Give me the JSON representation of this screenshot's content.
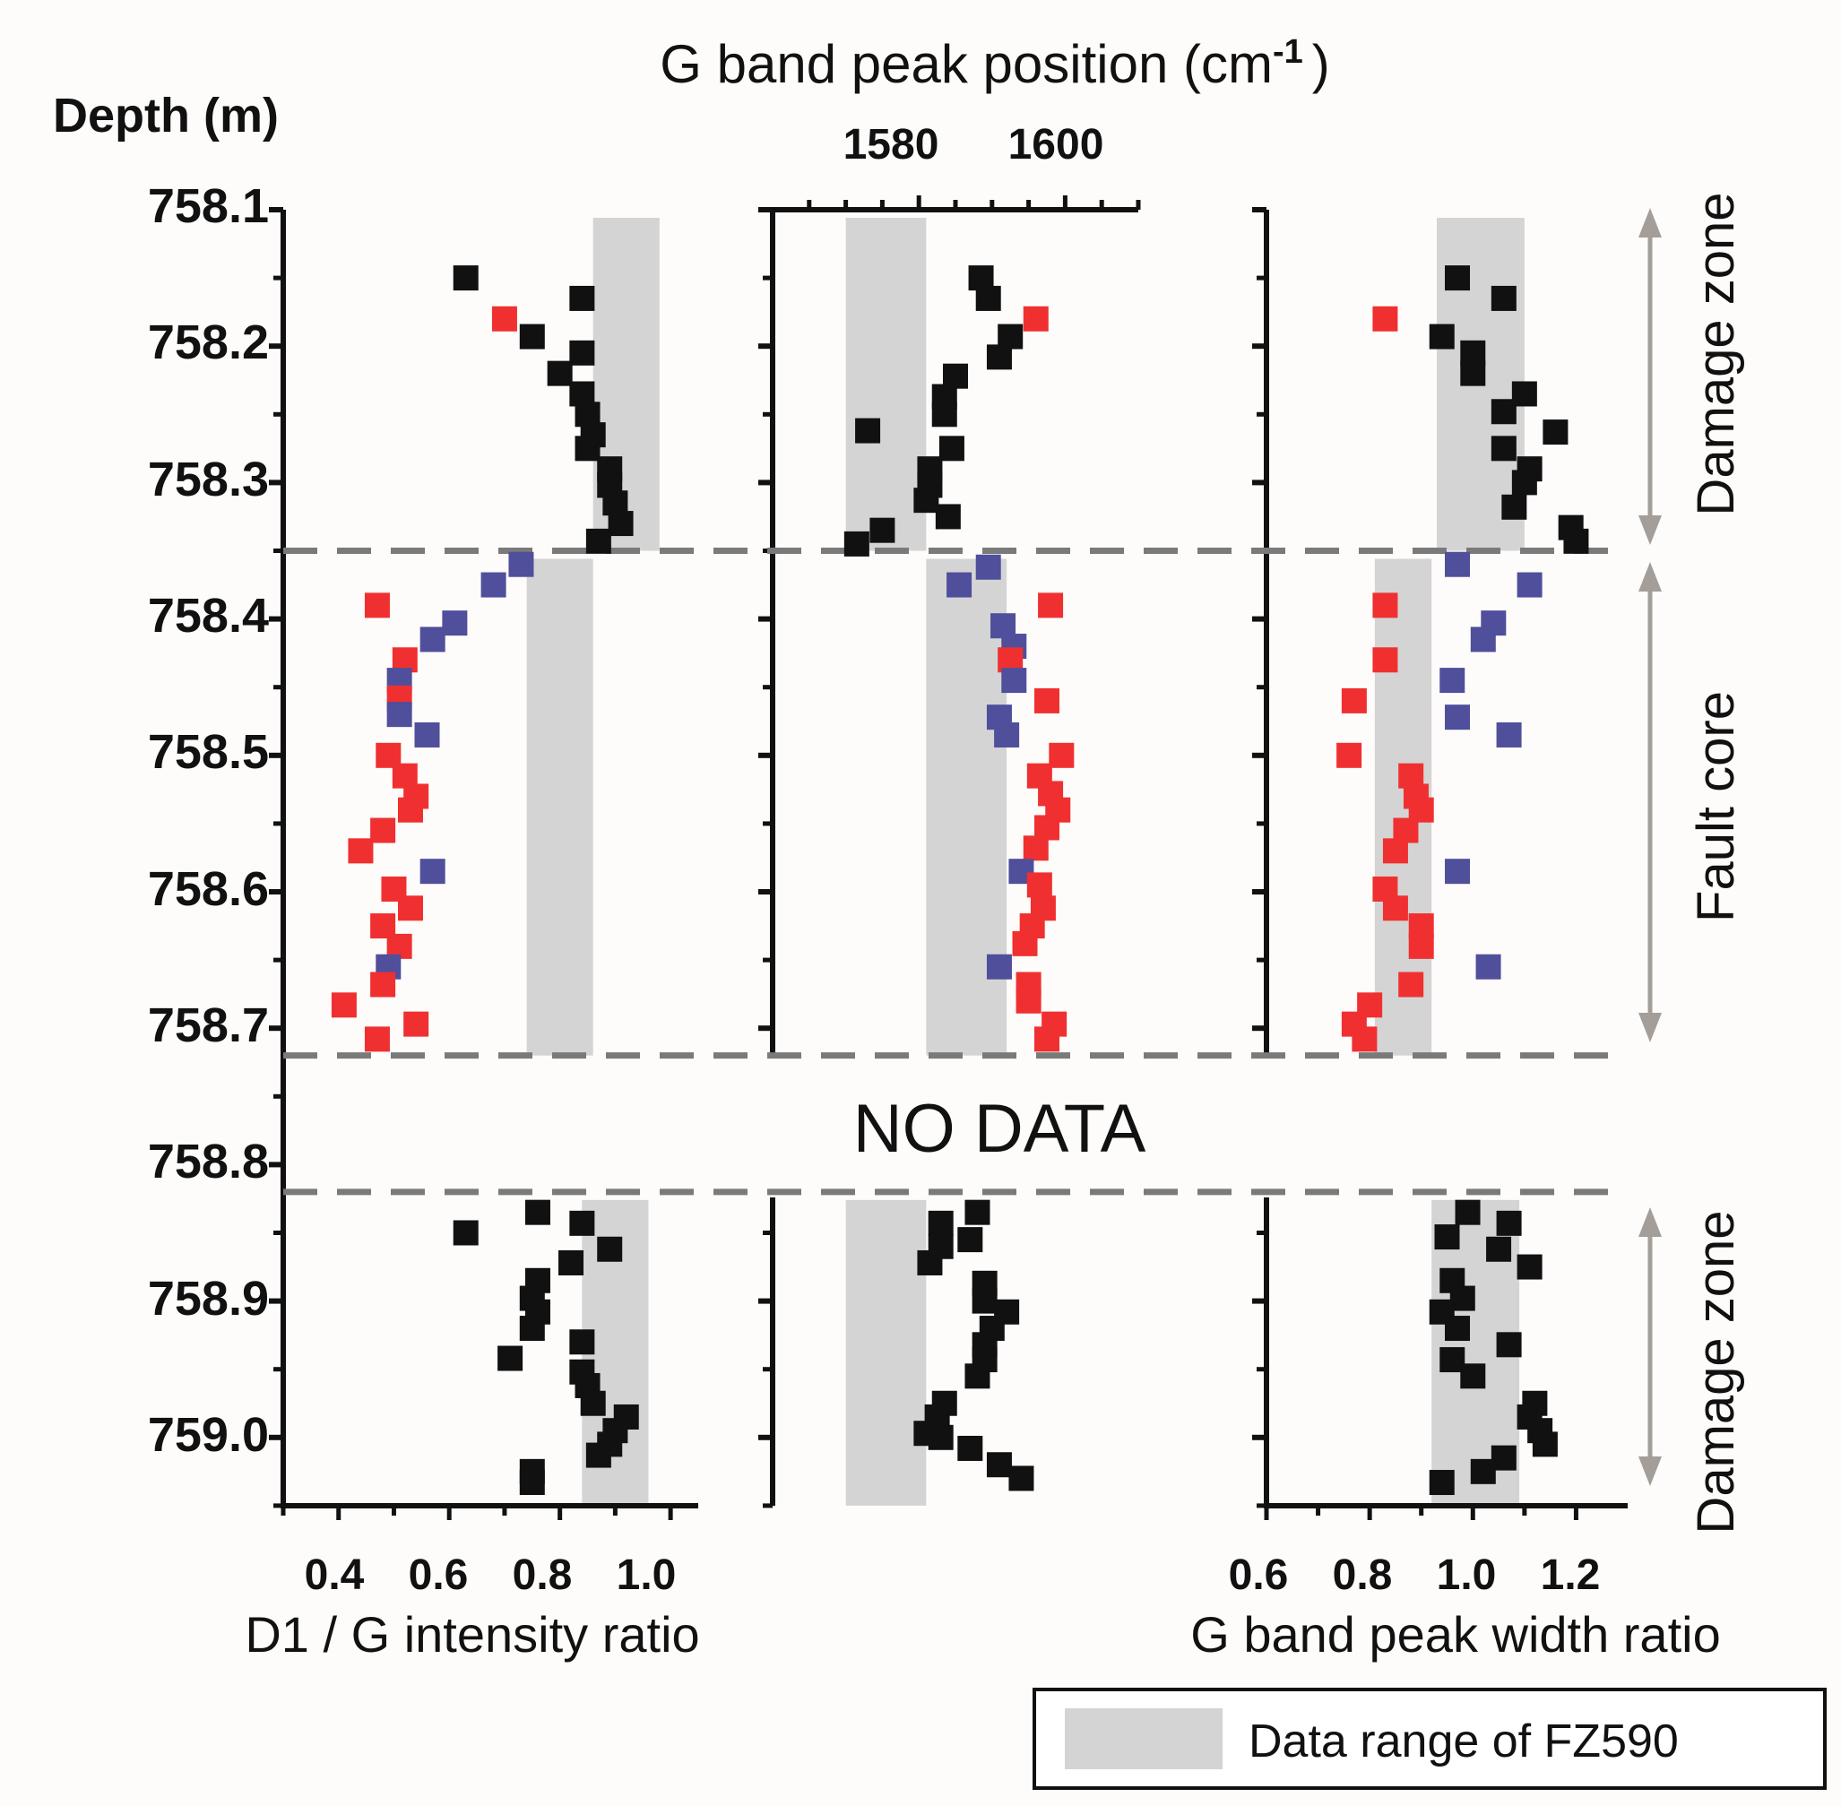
{
  "chart_data": {
    "type": "scatter",
    "depth_axis": {
      "title": "Depth (m)",
      "range": [
        758.1,
        759.05
      ],
      "tick_labels": [
        "758.1",
        "758.2",
        "758.3",
        "758.4",
        "758.5",
        "758.6",
        "758.7",
        "758.8",
        "758.9",
        "759.0"
      ]
    },
    "zones": [
      {
        "label": "Damage zone",
        "from": 758.1,
        "to": 758.35
      },
      {
        "label": "Fault core",
        "from": 758.35,
        "to": 758.72
      },
      {
        "label": "Damage zone",
        "from": 758.82,
        "to": 759.05
      }
    ],
    "boundaries": [
      758.35,
      758.72,
      758.82
    ],
    "no_data": {
      "label": "NO DATA",
      "from": 758.72,
      "to": 758.82
    },
    "legend": {
      "label": "Data range of FZ590",
      "color": "#d4d4d4"
    },
    "colors": {
      "black": "#111111",
      "red": "#f03030",
      "blue": "#4f4f9c",
      "shade": "#d4d4d4",
      "dash": "#7a7a7a",
      "arrow": "#a39e9a"
    },
    "panels": [
      {
        "id": "d1g",
        "xlabel": "D1 / G intensity ratio",
        "xlim": [
          0.3,
          1.05
        ],
        "tick_labels": [
          "0.4",
          "0.6",
          "0.8",
          "1.0"
        ],
        "shaded": [
          {
            "from": 758.1,
            "to": 758.35,
            "x": [
              0.86,
              0.98
            ]
          },
          {
            "from": 758.35,
            "to": 758.72,
            "x": [
              0.74,
              0.86
            ]
          },
          {
            "from": 758.82,
            "to": 759.05,
            "x": [
              0.84,
              0.96
            ]
          }
        ],
        "points": [
          [
            "k",
            0.63,
            758.15
          ],
          [
            "k",
            0.84,
            758.165
          ],
          [
            "r",
            0.7,
            758.18
          ],
          [
            "k",
            0.75,
            758.193
          ],
          [
            "k",
            0.84,
            758.205
          ],
          [
            "k",
            0.8,
            758.22
          ],
          [
            "k",
            0.84,
            758.235
          ],
          [
            "k",
            0.85,
            758.25
          ],
          [
            "k",
            0.86,
            758.265
          ],
          [
            "k",
            0.85,
            758.275
          ],
          [
            "k",
            0.89,
            758.29
          ],
          [
            "k",
            0.89,
            758.302
          ],
          [
            "k",
            0.9,
            758.315
          ],
          [
            "k",
            0.91,
            758.33
          ],
          [
            "k",
            0.87,
            758.343
          ],
          [
            "b",
            0.73,
            758.36
          ],
          [
            "b",
            0.68,
            758.375
          ],
          [
            "r",
            0.47,
            758.39
          ],
          [
            "b",
            0.61,
            758.403
          ],
          [
            "b",
            0.57,
            758.415
          ],
          [
            "r",
            0.52,
            758.43
          ],
          [
            "b",
            0.51,
            758.445
          ],
          [
            "r",
            0.51,
            758.458
          ],
          [
            "b",
            0.51,
            758.47
          ],
          [
            "b",
            0.56,
            758.485
          ],
          [
            "r",
            0.49,
            758.5
          ],
          [
            "r",
            0.52,
            758.515
          ],
          [
            "r",
            0.54,
            758.53
          ],
          [
            "r",
            0.53,
            758.54
          ],
          [
            "r",
            0.48,
            758.555
          ],
          [
            "r",
            0.44,
            758.57
          ],
          [
            "b",
            0.57,
            758.585
          ],
          [
            "r",
            0.5,
            758.598
          ],
          [
            "r",
            0.53,
            758.612
          ],
          [
            "r",
            0.48,
            758.625
          ],
          [
            "r",
            0.51,
            758.64
          ],
          [
            "b",
            0.49,
            758.655
          ],
          [
            "r",
            0.48,
            758.668
          ],
          [
            "r",
            0.41,
            758.683
          ],
          [
            "r",
            0.54,
            758.697
          ],
          [
            "r",
            0.47,
            758.708
          ],
          [
            "k",
            0.76,
            758.835
          ],
          [
            "k",
            0.84,
            758.843
          ],
          [
            "k",
            0.63,
            758.85
          ],
          [
            "k",
            0.89,
            758.862
          ],
          [
            "k",
            0.82,
            758.872
          ],
          [
            "k",
            0.76,
            758.885
          ],
          [
            "k",
            0.75,
            758.898
          ],
          [
            "k",
            0.76,
            758.908
          ],
          [
            "k",
            0.75,
            758.92
          ],
          [
            "k",
            0.84,
            758.93
          ],
          [
            "k",
            0.71,
            758.942
          ],
          [
            "k",
            0.84,
            758.952
          ],
          [
            "k",
            0.85,
            758.962
          ],
          [
            "k",
            0.86,
            758.975
          ],
          [
            "k",
            0.92,
            758.985
          ],
          [
            "k",
            0.9,
            758.995
          ],
          [
            "k",
            0.89,
            759.005
          ],
          [
            "k",
            0.87,
            759.013
          ],
          [
            "k",
            0.75,
            759.025
          ],
          [
            "k",
            0.75,
            759.033
          ]
        ]
      },
      {
        "id": "gpos",
        "xlabel_top": "G band peak position (cm",
        "xlabel_sup": "-1",
        "xlabel_close": ")",
        "xlim": [
          1560,
          1610
        ],
        "tick_labels": [
          "1580",
          "1600"
        ],
        "shaded": [
          {
            "from": 758.1,
            "to": 758.35,
            "x": [
              1570,
              1581
            ]
          },
          {
            "from": 758.35,
            "to": 758.72,
            "x": [
              1581,
              1592
            ]
          },
          {
            "from": 758.82,
            "to": 759.05,
            "x": [
              1570,
              1581
            ]
          }
        ],
        "points": [
          [
            "k",
            1588.5,
            758.15
          ],
          [
            "k",
            1589.5,
            758.165
          ],
          [
            "r",
            1596,
            758.18
          ],
          [
            "k",
            1592.5,
            758.193
          ],
          [
            "k",
            1591,
            758.208
          ],
          [
            "k",
            1585,
            758.222
          ],
          [
            "k",
            1583.5,
            758.237
          ],
          [
            "k",
            1583.5,
            758.25
          ],
          [
            "k",
            1573,
            758.262
          ],
          [
            "k",
            1584.5,
            758.275
          ],
          [
            "k",
            1581.5,
            758.29
          ],
          [
            "k",
            1581.5,
            758.302
          ],
          [
            "k",
            1581,
            758.313
          ],
          [
            "k",
            1584,
            758.325
          ],
          [
            "k",
            1575,
            758.335
          ],
          [
            "k",
            1571.5,
            758.345
          ],
          [
            "b",
            1589.5,
            758.362
          ],
          [
            "b",
            1585.5,
            758.375
          ],
          [
            "r",
            1598,
            758.39
          ],
          [
            "b",
            1591.5,
            758.405
          ],
          [
            "b",
            1593,
            758.42
          ],
          [
            "r",
            1592.5,
            758.43
          ],
          [
            "b",
            1593,
            758.445
          ],
          [
            "r",
            1597.5,
            758.46
          ],
          [
            "b",
            1591,
            758.472
          ],
          [
            "b",
            1592,
            758.485
          ],
          [
            "r",
            1599.5,
            758.5
          ],
          [
            "r",
            1596.5,
            758.515
          ],
          [
            "r",
            1598,
            758.528
          ],
          [
            "r",
            1599,
            758.54
          ],
          [
            "r",
            1597.5,
            758.553
          ],
          [
            "r",
            1596,
            758.568
          ],
          [
            "b",
            1594,
            758.585
          ],
          [
            "r",
            1596.5,
            758.595
          ],
          [
            "r",
            1597,
            758.612
          ],
          [
            "r",
            1595.5,
            758.625
          ],
          [
            "r",
            1594.5,
            758.638
          ],
          [
            "b",
            1591,
            758.655
          ],
          [
            "r",
            1595,
            758.668
          ],
          [
            "r",
            1595,
            758.68
          ],
          [
            "r",
            1598.5,
            758.697
          ],
          [
            "r",
            1597.5,
            758.708
          ],
          [
            "k",
            1588,
            758.835
          ],
          [
            "k",
            1583,
            758.843
          ],
          [
            "k",
            1587,
            758.855
          ],
          [
            "k",
            1583,
            758.86
          ],
          [
            "k",
            1581.5,
            758.872
          ],
          [
            "k",
            1589,
            758.887
          ],
          [
            "k",
            1589,
            758.9
          ],
          [
            "k",
            1592,
            758.908
          ],
          [
            "k",
            1590,
            758.92
          ],
          [
            "k",
            1589,
            758.932
          ],
          [
            "k",
            1589,
            758.943
          ],
          [
            "k",
            1588,
            758.955
          ],
          [
            "k",
            1583.5,
            758.975
          ],
          [
            "k",
            1582.5,
            758.985
          ],
          [
            "k",
            1581,
            758.997
          ],
          [
            "k",
            1583,
            759.0
          ],
          [
            "k",
            1587,
            759.008
          ],
          [
            "k",
            1591,
            759.02
          ],
          [
            "k",
            1594,
            759.03
          ]
        ]
      },
      {
        "id": "gwidth",
        "xlabel": "G band peak width ratio",
        "xlim": [
          0.6,
          1.3
        ],
        "tick_labels": [
          "0.6",
          "0.8",
          "1.0",
          "1.2"
        ],
        "shaded": [
          {
            "from": 758.1,
            "to": 758.35,
            "x": [
              0.93,
              1.1
            ]
          },
          {
            "from": 758.35,
            "to": 758.72,
            "x": [
              0.81,
              0.92
            ]
          },
          {
            "from": 758.82,
            "to": 759.05,
            "x": [
              0.92,
              1.09
            ]
          }
        ],
        "points": [
          [
            "k",
            0.97,
            758.15
          ],
          [
            "k",
            1.06,
            758.165
          ],
          [
            "r",
            0.83,
            758.18
          ],
          [
            "k",
            0.94,
            758.193
          ],
          [
            "k",
            1.0,
            758.205
          ],
          [
            "k",
            1.0,
            758.22
          ],
          [
            "k",
            1.1,
            758.235
          ],
          [
            "k",
            1.06,
            758.248
          ],
          [
            "k",
            1.16,
            758.263
          ],
          [
            "k",
            1.06,
            758.275
          ],
          [
            "k",
            1.11,
            758.29
          ],
          [
            "k",
            1.1,
            758.3
          ],
          [
            "k",
            1.08,
            758.318
          ],
          [
            "k",
            1.19,
            758.333
          ],
          [
            "k",
            1.2,
            758.343
          ],
          [
            "b",
            0.97,
            758.36
          ],
          [
            "b",
            1.11,
            758.375
          ],
          [
            "r",
            0.83,
            758.39
          ],
          [
            "b",
            1.04,
            758.403
          ],
          [
            "b",
            1.02,
            758.415
          ],
          [
            "r",
            0.83,
            758.43
          ],
          [
            "b",
            0.96,
            758.445
          ],
          [
            "r",
            0.77,
            758.46
          ],
          [
            "b",
            0.97,
            758.472
          ],
          [
            "b",
            1.07,
            758.485
          ],
          [
            "r",
            0.76,
            758.5
          ],
          [
            "r",
            0.88,
            758.515
          ],
          [
            "r",
            0.89,
            758.53
          ],
          [
            "r",
            0.9,
            758.54
          ],
          [
            "r",
            0.87,
            758.555
          ],
          [
            "r",
            0.85,
            758.57
          ],
          [
            "b",
            0.97,
            758.585
          ],
          [
            "r",
            0.83,
            758.598
          ],
          [
            "r",
            0.85,
            758.612
          ],
          [
            "r",
            0.9,
            758.625
          ],
          [
            "r",
            0.9,
            758.64
          ],
          [
            "b",
            1.03,
            758.655
          ],
          [
            "r",
            0.88,
            758.668
          ],
          [
            "r",
            0.8,
            758.683
          ],
          [
            "r",
            0.77,
            758.697
          ],
          [
            "r",
            0.79,
            758.708
          ],
          [
            "k",
            0.99,
            758.835
          ],
          [
            "k",
            1.07,
            758.843
          ],
          [
            "k",
            0.95,
            758.853
          ],
          [
            "k",
            1.05,
            758.862
          ],
          [
            "k",
            1.11,
            758.875
          ],
          [
            "k",
            0.96,
            758.885
          ],
          [
            "k",
            0.98,
            758.898
          ],
          [
            "k",
            0.94,
            758.908
          ],
          [
            "k",
            0.97,
            758.92
          ],
          [
            "k",
            1.07,
            758.932
          ],
          [
            "k",
            0.96,
            758.943
          ],
          [
            "k",
            1.0,
            758.955
          ],
          [
            "k",
            1.12,
            758.975
          ],
          [
            "k",
            1.11,
            758.985
          ],
          [
            "k",
            1.13,
            758.995
          ],
          [
            "k",
            1.14,
            759.005
          ],
          [
            "k",
            1.06,
            759.015
          ],
          [
            "k",
            1.02,
            759.025
          ],
          [
            "k",
            0.94,
            759.033
          ]
        ]
      }
    ]
  }
}
